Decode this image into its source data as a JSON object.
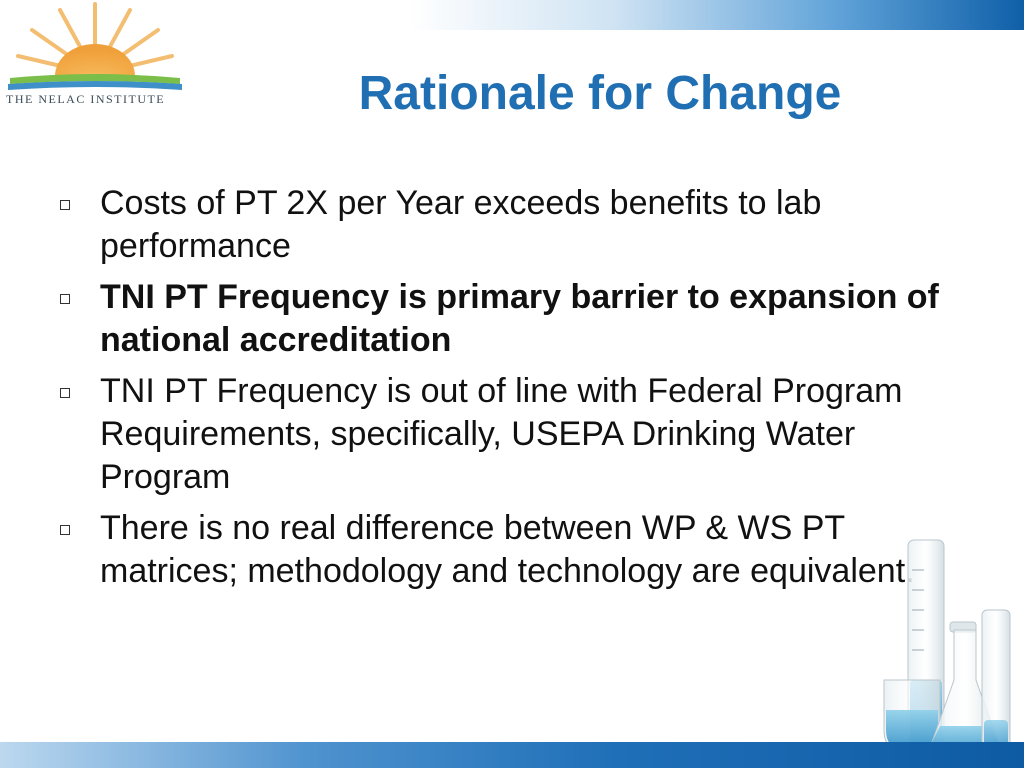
{
  "logo": {
    "text": "THE NELAC INSTITUTE"
  },
  "title": "Rationale for Change",
  "bullets": [
    {
      "text": "Costs of PT 2X per Year exceeds benefits to lab performance",
      "bold": false
    },
    {
      "text": "TNI PT Frequency is primary barrier to expansion of national accreditation",
      "bold": true
    },
    {
      "text": "TNI PT Frequency is out of line with Federal Program Requirements, specifically, USEPA Drinking Water Program",
      "bold": false
    },
    {
      "text": "There is no real difference between WP &  WS PT matrices; methodology and technology are equivalent.",
      "bold": false
    }
  ],
  "colors": {
    "title": "#1f6fb2",
    "accent_dark": "#0e5ba3",
    "sun": "#f2a93b",
    "water": "#4aa7d8"
  }
}
